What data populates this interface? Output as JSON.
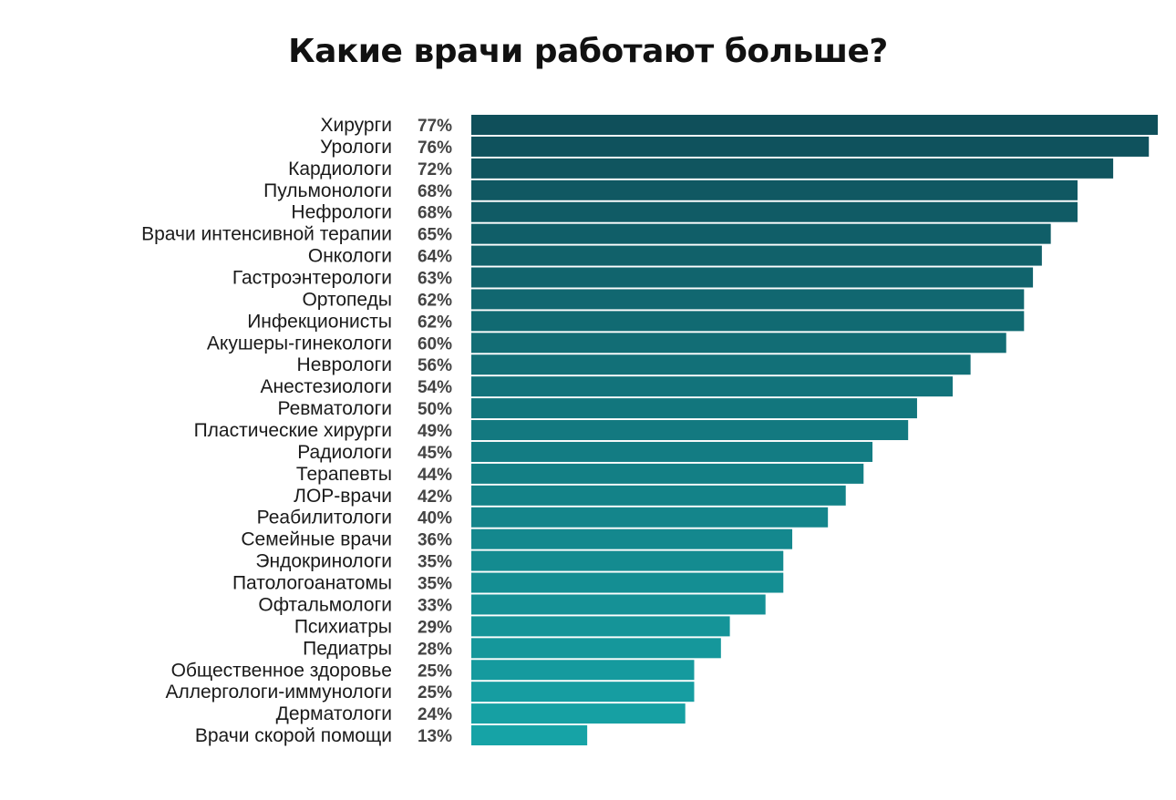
{
  "chart_data": {
    "type": "bar",
    "orientation": "horizontal",
    "title": "Какие врачи работают больше?",
    "categories": [
      "Хирурги",
      "Урологи",
      "Кардиологи",
      "Пульмонологи",
      "Нефрологи",
      "Врачи интенсивной терапии",
      "Онкологи",
      "Гастроэнтерологи",
      "Ортопеды",
      "Инфекционисты",
      "Акушеры-гинекологи",
      "Неврологи",
      "Анестезиологи",
      "Ревматологи",
      "Пластические хирурги",
      "Радиологи",
      "Терапевты",
      "ЛОР-врачи",
      "Реабилитологи",
      "Семейные врачи",
      "Эндокринологи",
      "Патологоанатомы",
      "Офтальмологи",
      "Психиатры",
      "Педиатры",
      "Общественное здоровье",
      "Аллергологи-иммунологи",
      "Дерматологи",
      "Врачи скорой помощи"
    ],
    "values": [
      77,
      76,
      72,
      68,
      68,
      65,
      64,
      63,
      62,
      62,
      60,
      56,
      54,
      50,
      49,
      45,
      44,
      42,
      40,
      36,
      35,
      35,
      33,
      29,
      28,
      25,
      25,
      24,
      13
    ],
    "value_labels": [
      "77%",
      "76%",
      "72%",
      "68%",
      "68%",
      "65%",
      "64%",
      "63%",
      "62%",
      "62%",
      "60%",
      "56%",
      "54%",
      "50%",
      "49%",
      "45%",
      "44%",
      "42%",
      "40%",
      "36%",
      "35%",
      "35%",
      "33%",
      "29%",
      "28%",
      "25%",
      "25%",
      "24%",
      "13%"
    ],
    "unit": "%",
    "xlim": [
      0,
      77
    ],
    "grid": false,
    "legend": "none",
    "colors": {
      "top": "#0f4f5a",
      "bottom": "#16a3a6",
      "background": "#ffffff"
    }
  }
}
